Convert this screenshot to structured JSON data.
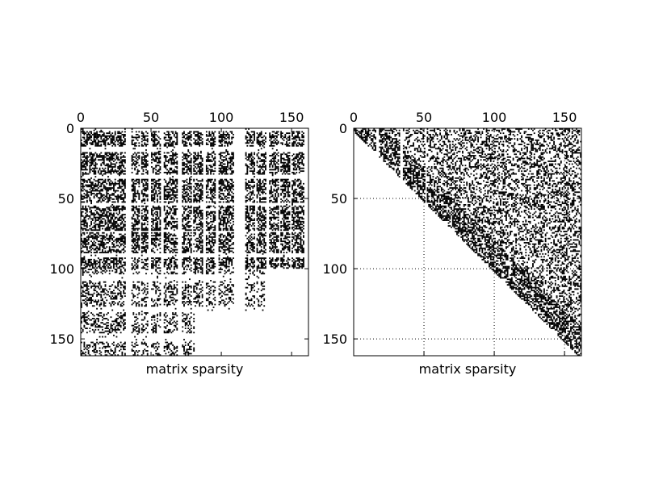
{
  "chart_data": [
    {
      "type": "heatmap",
      "subtype": "spy",
      "title": "",
      "xlabel": "matrix sparsity",
      "ylabel": "",
      "shape": [
        162,
        162
      ],
      "xlim": [
        0,
        162
      ],
      "ylim": [
        162,
        0
      ],
      "x_axis_position": "top",
      "xticks": [
        0,
        50,
        100,
        150
      ],
      "yticks": [
        0,
        50,
        100,
        150
      ],
      "grid": false,
      "marker_color": "#000000",
      "col_bands": [
        [
          0,
          7
        ],
        [
          8,
          13
        ],
        [
          14,
          20
        ],
        [
          21,
          26
        ],
        [
          27,
          31
        ],
        [
          36,
          41
        ],
        [
          43,
          47
        ],
        [
          50,
          56
        ],
        [
          59,
          63
        ],
        [
          63,
          68
        ],
        [
          72,
          78
        ],
        [
          80,
          86
        ],
        [
          89,
          95
        ],
        [
          98,
          103
        ],
        [
          104,
          108
        ],
        [
          117,
          123
        ],
        [
          125,
          131
        ],
        [
          134,
          140
        ],
        [
          142,
          148
        ],
        [
          150,
          158
        ]
      ],
      "row_bands": [
        [
          2,
          12
        ],
        [
          17,
          32
        ],
        [
          36,
          52
        ],
        [
          55,
          72
        ],
        [
          74,
          88
        ],
        [
          92,
          103
        ],
        [
          109,
          126
        ],
        [
          131,
          145
        ],
        [
          152,
          161
        ]
      ],
      "density_profile": [
        {
          "rows": [
            0,
            40
          ],
          "cols_visible_until": 162
        },
        {
          "rows": [
            40,
            100
          ],
          "cols_visible_until": 160
        },
        {
          "rows": [
            100,
            130
          ],
          "cols_visible_until": 130
        },
        {
          "rows": [
            130,
            162
          ],
          "cols_visible_until": 80
        }
      ]
    },
    {
      "type": "heatmap",
      "subtype": "spy",
      "title": "",
      "xlabel": "matrix sparsity",
      "ylabel": "",
      "shape": [
        162,
        162
      ],
      "xlim": [
        0,
        162
      ],
      "ylim": [
        162,
        0
      ],
      "x_axis_position": "top",
      "xticks": [
        0,
        50,
        100,
        150
      ],
      "yticks": [
        0,
        50,
        100,
        150
      ],
      "grid": true,
      "grid_style": "dotted",
      "marker_color": "#000000",
      "structure": "upper-triangular block",
      "diagonal_blocks": [
        {
          "rows": [
            0,
            15
          ],
          "cols": [
            0,
            15
          ]
        },
        {
          "rows": [
            0,
            45
          ],
          "cols": [
            18,
            32
          ]
        },
        {
          "rows": [
            0,
            52
          ],
          "cols": [
            35,
            50
          ]
        },
        {
          "rows": [
            0,
            70
          ],
          "cols": [
            52,
            72
          ]
        },
        {
          "rows": [
            0,
            90
          ],
          "cols": [
            72,
            90
          ]
        },
        {
          "rows": [
            0,
            106
          ],
          "cols": [
            90,
            108
          ]
        },
        {
          "rows": [
            0,
            125
          ],
          "cols": [
            108,
            126
          ]
        },
        {
          "rows": [
            0,
            145
          ],
          "cols": [
            126,
            145
          ]
        },
        {
          "rows": [
            0,
            162
          ],
          "cols": [
            145,
            162
          ]
        }
      ]
    }
  ]
}
